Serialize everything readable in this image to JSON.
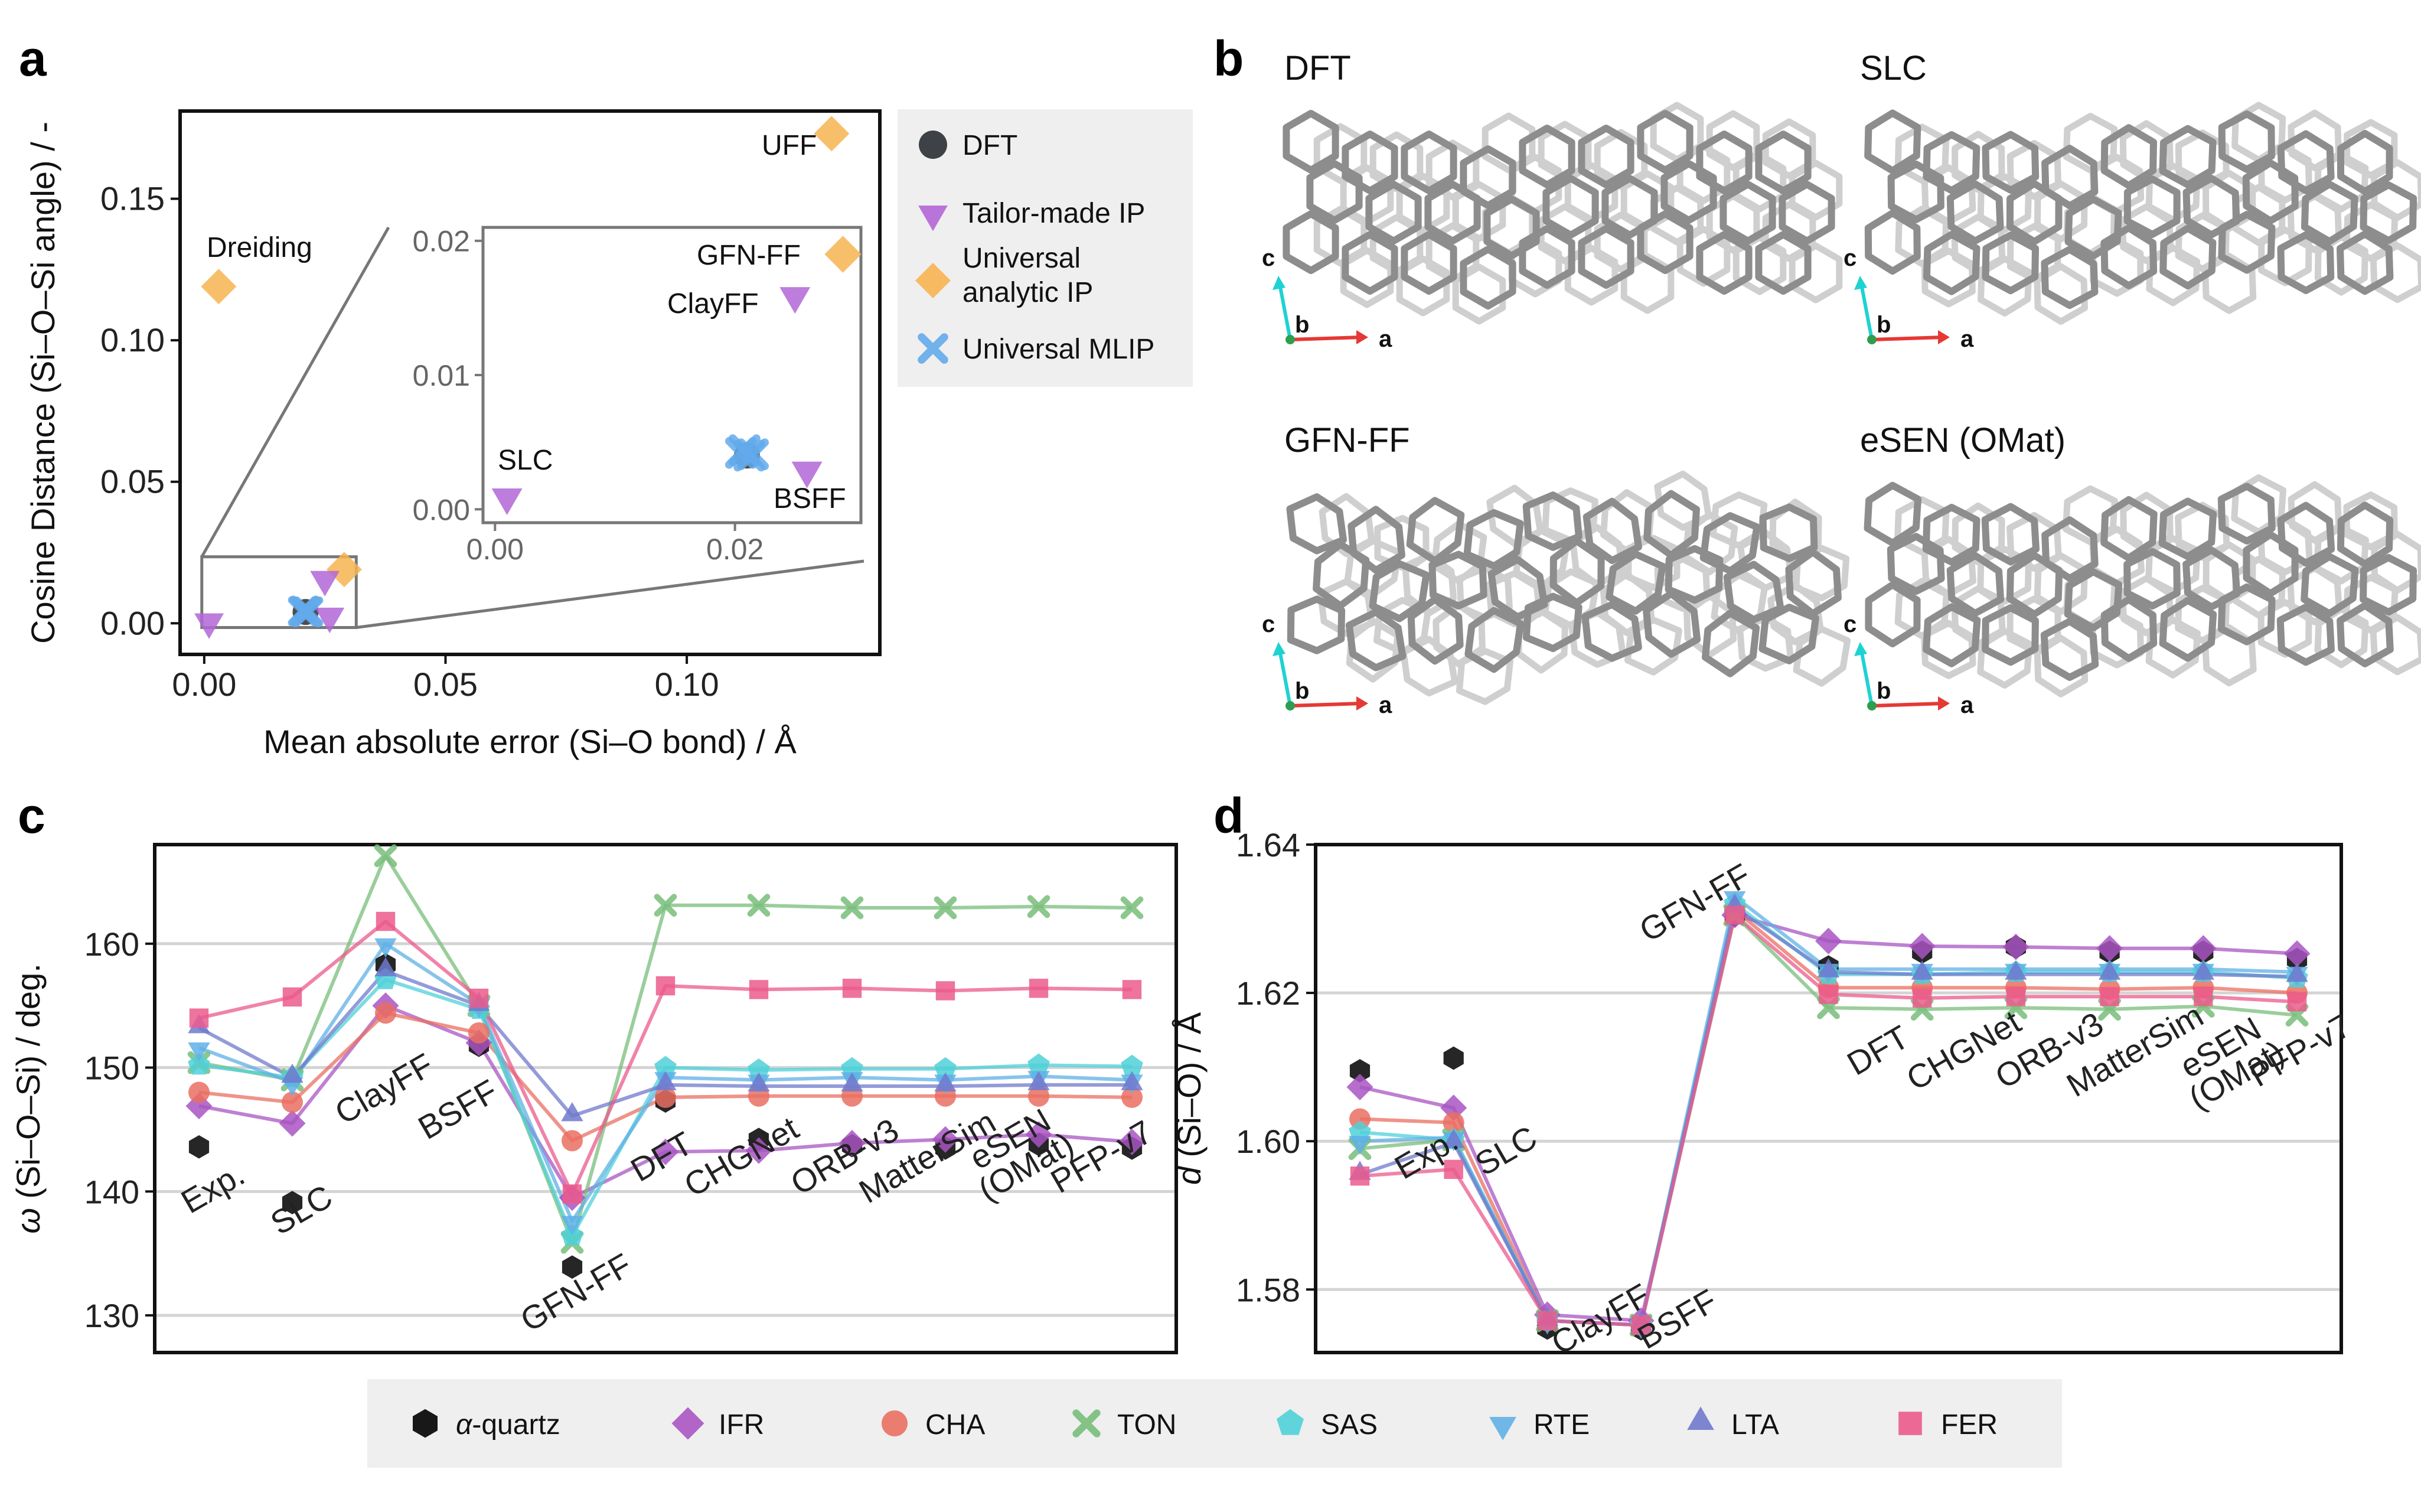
{
  "panels": {
    "a": "a",
    "b": "b",
    "c": "c",
    "d": "d"
  },
  "colors": {
    "DFT": "#2a2f33",
    "Tailor-made IP": "#b266d6",
    "Universal analytic IP": "#f7b451",
    "Universal MLIP": "#63aaeb",
    "alpha-quartz": "#f5cc3c",
    "IFR": "#a855c2",
    "CHA": "#ea6f62",
    "TON": "#78bd7a",
    "SAS": "#4fd0d8",
    "RTE": "#5fb0e6",
    "LTA": "#7079cc",
    "FER": "#eb5a8c"
  },
  "panel_b": {
    "structures": [
      {
        "title": "DFT"
      },
      {
        "title": "SLC"
      },
      {
        "title": "GFN-FF"
      },
      {
        "title": "eSEN (OMat)"
      }
    ],
    "axes": {
      "c": "c",
      "b": "b",
      "a": "a"
    }
  },
  "chart_data": [
    {
      "id": "a",
      "type": "scatter",
      "xlabel": "Mean absolute error (Si–O bond) / Å",
      "ylabel": "Cosine Distance (Si–O–Si angle) / -",
      "xlim": [
        -0.005,
        0.14
      ],
      "ylim": [
        -0.011,
        0.181
      ],
      "xticks": [
        0.0,
        0.05,
        0.1
      ],
      "xtick_labels": [
        "0.00",
        "0.05",
        "0.10"
      ],
      "yticks": [
        0.0,
        0.05,
        0.1,
        0.15
      ],
      "ytick_labels": [
        "0.00",
        "0.05",
        "0.10",
        "0.15"
      ],
      "points": [
        {
          "label": "DFT",
          "category": "DFT",
          "x": 0.021,
          "y": 0.004
        },
        {
          "label": "UFF",
          "category": "Universal analytic IP",
          "x": 0.13,
          "y": 0.173
        },
        {
          "label": "Dreiding",
          "category": "Universal analytic IP",
          "x": 0.003,
          "y": 0.119
        },
        {
          "label": "GFN-FF",
          "category": "Universal analytic IP",
          "x": 0.029,
          "y": 0.019
        },
        {
          "label": "ClayFF",
          "category": "Tailor-made IP",
          "x": 0.025,
          "y": 0.016
        },
        {
          "label": "SLC",
          "category": "Tailor-made IP",
          "x": 0.001,
          "y": 0.001
        },
        {
          "label": "BSFF",
          "category": "Tailor-made IP",
          "x": 0.026,
          "y": 0.003
        },
        {
          "label": "CHGNet",
          "category": "Universal MLIP",
          "x": 0.0205,
          "y": 0.0042
        },
        {
          "label": "ORB-v3",
          "category": "Universal MLIP",
          "x": 0.0212,
          "y": 0.004
        },
        {
          "label": "MatterSim",
          "category": "Universal MLIP",
          "x": 0.0208,
          "y": 0.0044
        },
        {
          "label": "eSEN (OMat)",
          "category": "Universal MLIP",
          "x": 0.0215,
          "y": 0.0041
        }
      ],
      "inset": {
        "xlim": [
          -0.001,
          0.0305
        ],
        "ylim": [
          -0.001,
          0.021
        ],
        "xticks": [
          0.0,
          0.02
        ],
        "xtick_labels": [
          "0.00",
          "0.02"
        ],
        "yticks": [
          0.0,
          0.01,
          0.02
        ],
        "ytick_labels": [
          "0.00",
          "0.01",
          "0.02"
        ]
      },
      "legend": {
        "position": "right",
        "entries": [
          {
            "label": "DFT",
            "marker": "circle",
            "category": "DFT"
          },
          {
            "label": "Tailor-made IP",
            "marker": "triangle-down",
            "category": "Tailor-made IP"
          },
          {
            "label": "Universal analytic IP",
            "lines": [
              "Universal",
              "analytic IP"
            ],
            "marker": "diamond",
            "category": "Universal analytic IP"
          },
          {
            "label": "Universal MLIP",
            "marker": "x",
            "category": "Universal MLIP"
          }
        ]
      }
    },
    {
      "id": "c",
      "type": "line",
      "ylabel": "ω (Si–O–Si) / deg.",
      "ylabel_symbol": "ω",
      "ylabel_rest": " (Si–O–Si) / deg.",
      "ylim": [
        127,
        168
      ],
      "yticks": [
        130,
        140,
        150,
        160
      ],
      "categories": [
        "Exp.",
        "SLC",
        "ClayFF",
        "BSFF",
        "GFN-FF",
        "DFT",
        "CHGNet",
        "ORB-v3",
        "MatterSim",
        "eSEN (OMat)",
        "PFP-v7"
      ],
      "category_labels": [
        [
          "Exp."
        ],
        [
          "SLC"
        ],
        [
          "ClayFF"
        ],
        [
          "BSFF"
        ],
        [
          "GFN-FF"
        ],
        [
          "DFT"
        ],
        [
          "CHGNet"
        ],
        [
          "ORB-v3"
        ],
        [
          "MatterSim"
        ],
        [
          "eSEN",
          "(OMat)"
        ],
        [
          "PFP-v7"
        ]
      ],
      "series": [
        {
          "name": "α-quartz",
          "marker": "hexagon",
          "values": [
            143.6,
            139.1,
            158.3,
            151.8,
            133.9,
            147.3,
            144.2,
            143.7,
            143.5,
            143.8,
            143.5
          ]
        },
        {
          "name": "IFR",
          "marker": "diamond",
          "values": [
            146.9,
            145.5,
            155.0,
            152.0,
            139.5,
            143.2,
            143.3,
            143.9,
            144.2,
            144.6,
            144.0
          ]
        },
        {
          "name": "CHA",
          "marker": "circle",
          "values": [
            148.0,
            147.2,
            154.4,
            152.8,
            144.1,
            147.6,
            147.7,
            147.7,
            147.7,
            147.7,
            147.6
          ]
        },
        {
          "name": "TON",
          "marker": "x",
          "values": [
            150.4,
            149.0,
            167.1,
            155.0,
            135.9,
            163.1,
            163.1,
            162.9,
            162.9,
            163.0,
            162.9
          ]
        },
        {
          "name": "SAS",
          "marker": "pentagon",
          "values": [
            150.2,
            149.2,
            157.1,
            154.7,
            136.4,
            150.0,
            149.8,
            149.9,
            149.9,
            150.2,
            150.1
          ]
        },
        {
          "name": "RTE",
          "marker": "triangle-down",
          "values": [
            151.6,
            148.8,
            160.0,
            155.1,
            137.6,
            149.2,
            149.0,
            149.2,
            149.0,
            149.3,
            149.0
          ]
        },
        {
          "name": "LTA",
          "marker": "triangle-up",
          "values": [
            153.2,
            149.2,
            157.8,
            155.0,
            146.1,
            148.6,
            148.5,
            148.5,
            148.5,
            148.6,
            148.6
          ]
        },
        {
          "name": "FER",
          "marker": "square",
          "values": [
            154.0,
            155.7,
            161.8,
            155.6,
            139.8,
            156.6,
            156.3,
            156.4,
            156.2,
            156.4,
            156.3
          ]
        }
      ]
    },
    {
      "id": "d",
      "type": "line",
      "ylabel": "d (Si–O) / Å",
      "ylabel_symbol": "d",
      "ylabel_rest": " (Si–O) / Å",
      "ylim": [
        1.5715,
        1.64
      ],
      "yticks": [
        1.58,
        1.6,
        1.62,
        1.64
      ],
      "ytick_labels": [
        "1.58",
        "1.60",
        "1.62",
        "1.64"
      ],
      "categories": [
        "Exp.",
        "SLC",
        "ClayFF",
        "BSFF",
        "GFN-FF",
        "DFT",
        "CHGNet",
        "ORB-v3",
        "MatterSim",
        "eSEN (OMat)",
        "PFP-v7"
      ],
      "category_labels": [
        [
          "Exp."
        ],
        [
          "SLC"
        ],
        [
          "ClayFF"
        ],
        [
          "BSFF"
        ],
        [
          "GFN-FF"
        ],
        [
          "DFT"
        ],
        [
          "CHGNet"
        ],
        [
          "ORB-v3"
        ],
        [
          "MatterSim"
        ],
        [
          "eSEN",
          "(OMat)"
        ],
        [
          "PFP-v7"
        ]
      ],
      "series": [
        {
          "name": "α-quartz",
          "marker": "hexagon",
          "values": [
            1.6095,
            1.6112,
            1.5748,
            1.5747,
            1.6305,
            1.6235,
            1.6255,
            1.6262,
            1.6255,
            1.6255,
            1.6245
          ]
        },
        {
          "name": "IFR",
          "marker": "diamond",
          "values": [
            1.6073,
            1.6045,
            1.5766,
            1.5758,
            1.6305,
            1.627,
            1.6263,
            1.6262,
            1.626,
            1.626,
            1.6253
          ]
        },
        {
          "name": "CHA",
          "marker": "circle",
          "values": [
            1.603,
            1.6025,
            1.5758,
            1.5752,
            1.6312,
            1.6207,
            1.6207,
            1.6207,
            1.6205,
            1.6207,
            1.62
          ]
        },
        {
          "name": "TON",
          "marker": "x",
          "values": [
            1.599,
            1.6002,
            1.5758,
            1.5752,
            1.6305,
            1.618,
            1.6178,
            1.618,
            1.6178,
            1.6182,
            1.617
          ]
        },
        {
          "name": "SAS",
          "marker": "pentagon",
          "values": [
            1.6012,
            1.6002,
            1.5758,
            1.5752,
            1.632,
            1.6225,
            1.6225,
            1.6228,
            1.6228,
            1.6228,
            1.622
          ]
        },
        {
          "name": "RTE",
          "marker": "triangle-down",
          "values": [
            1.6,
            1.6005,
            1.5758,
            1.5752,
            1.633,
            1.6232,
            1.6232,
            1.6232,
            1.6232,
            1.6232,
            1.6228
          ]
        },
        {
          "name": "LTA",
          "marker": "triangle-up",
          "values": [
            1.5955,
            1.5998,
            1.5758,
            1.5752,
            1.6315,
            1.6228,
            1.6225,
            1.6225,
            1.6225,
            1.6225,
            1.6222
          ]
        },
        {
          "name": "FER",
          "marker": "square",
          "values": [
            1.5953,
            1.5962,
            1.5758,
            1.5752,
            1.6305,
            1.6198,
            1.6193,
            1.6195,
            1.6195,
            1.6195,
            1.6188
          ]
        }
      ]
    }
  ],
  "bottom_legend": [
    {
      "label": "α-quartz",
      "prefix": "α",
      "rest": "-quartz",
      "series": "α-quartz"
    },
    {
      "label": "IFR",
      "series": "IFR"
    },
    {
      "label": "CHA",
      "series": "CHA"
    },
    {
      "label": "TON",
      "series": "TON"
    },
    {
      "label": "SAS",
      "series": "SAS"
    },
    {
      "label": "RTE",
      "series": "RTE"
    },
    {
      "label": "LTA",
      "series": "LTA"
    },
    {
      "label": "FER",
      "series": "FER"
    }
  ]
}
